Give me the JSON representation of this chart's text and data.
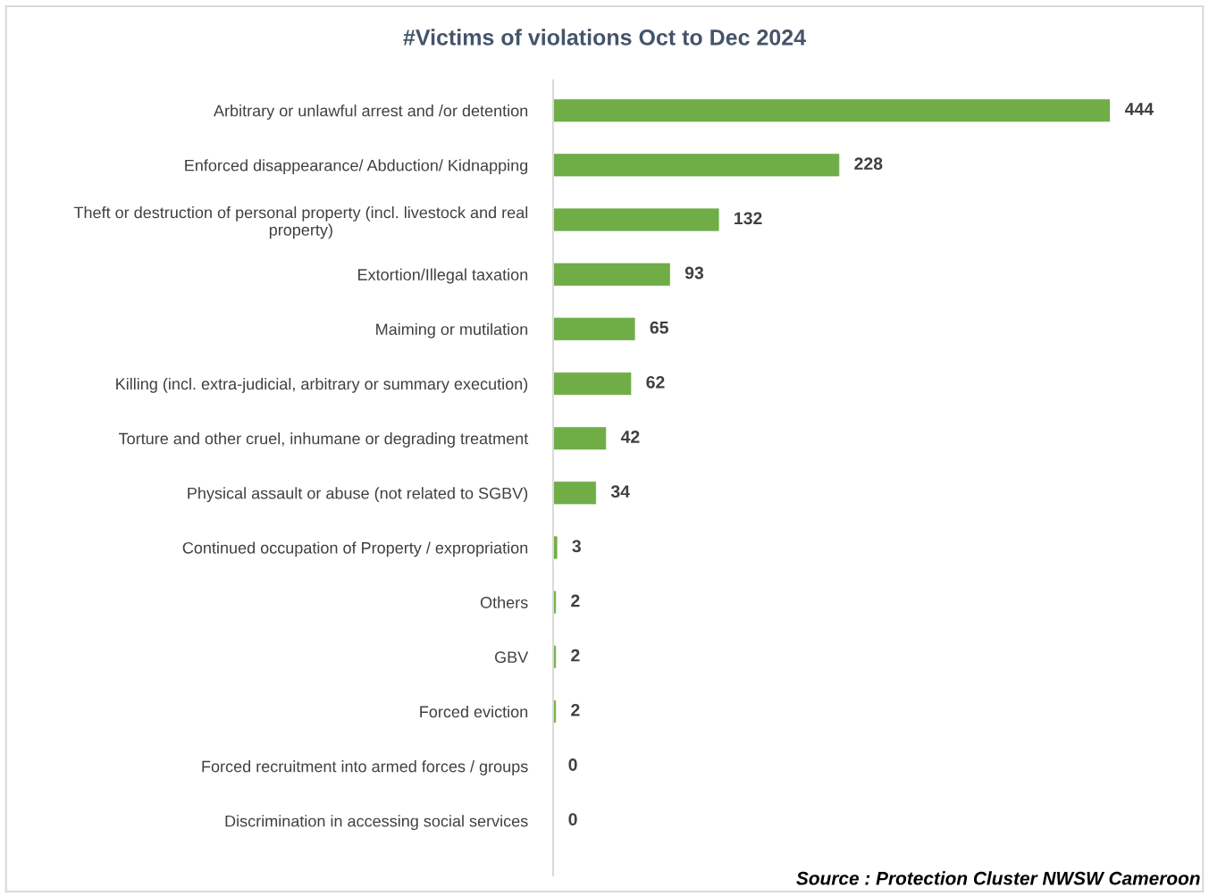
{
  "chart_data": {
    "type": "bar",
    "orientation": "horizontal",
    "title": "#Victims of violations Oct to Dec 2024",
    "categories": [
      "Arbitrary or unlawful arrest and /or detention",
      "Enforced disappearance/ Abduction/ Kidnapping",
      "Theft or destruction of personal property (incl. livestock and real\nproperty)",
      "Extortion/Illegal taxation",
      "Maiming or mutilation",
      "Killing (incl. extra-judicial, arbitrary or summary execution)",
      "Torture and other cruel, inhumane or degrading treatment",
      "Physical assault or abuse (not related to SGBV)",
      "Continued occupation of Property / expropriation",
      "Others",
      "GBV",
      "Forced eviction",
      "Forced recruitment into armed forces / groups",
      "Discrimination in accessing social services"
    ],
    "values": [
      444,
      228,
      132,
      93,
      65,
      62,
      42,
      34,
      3,
      2,
      2,
      2,
      0,
      0
    ],
    "color": "#70ad47",
    "data_labels": true,
    "tick_labels": "y",
    "grid": false,
    "legend": false,
    "annotations": [
      "Source : Protection Cluster NWSW Cameroon"
    ]
  }
}
